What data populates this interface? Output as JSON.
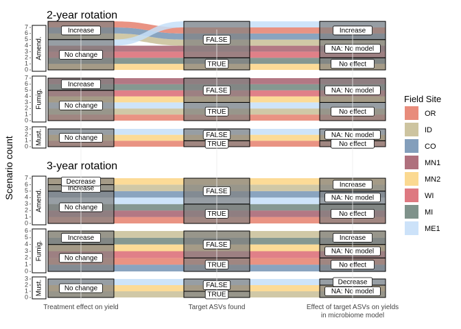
{
  "chart_data": {
    "type": "alluvial",
    "ylabel": "Scenario count",
    "axes": [
      "Treatment effect on yield",
      "Target ASVs found",
      "Effect of target ASVs on yields in microbiome model"
    ],
    "axis_label_lines": [
      [
        "Treatment effect on yield"
      ],
      [
        "Target ASVs found"
      ],
      [
        "Effect of target ASVs on yields",
        "in microbiome model"
      ]
    ],
    "legend": {
      "title": "Field Site",
      "position": "right",
      "sites": [
        "OR",
        "ID",
        "CO",
        "MN1",
        "MN2",
        "WI",
        "MI",
        "ME1"
      ],
      "colors": {
        "OR": "#E5806D",
        "ID": "#C8BE96",
        "CO": "#7594B4",
        "MN1": "#A6606F",
        "MN2": "#FBD585",
        "WI": "#DA6A73",
        "MI": "#71867E",
        "ME1": "#C6DFF8"
      }
    },
    "blocks": [
      {
        "title": "2-year rotation",
        "panels": [
          {
            "strip": "Amend.",
            "ymax": 7,
            "ticks": [
              0,
              1,
              2,
              3,
              4,
              5,
              6,
              7
            ],
            "strata": [
              [
                "No change",
                "Increase"
              ],
              [
                "TRUE",
                "FALSE"
              ],
              [
                "No effect",
                "NA: No model",
                "Increase"
              ]
            ],
            "flows": [
              {
                "site": "MN2",
                "path": [
                  "No change",
                  "TRUE",
                  "No effect"
                ]
              },
              {
                "site": "MI",
                "path": [
                  "No change",
                  "TRUE",
                  "No effect"
                ]
              },
              {
                "site": "WI",
                "path": [
                  "No change",
                  "FALSE",
                  "NA: No model"
                ]
              },
              {
                "site": "MN1",
                "path": [
                  "No change",
                  "FALSE",
                  "NA: No model"
                ]
              },
              {
                "site": "ID",
                "path": [
                  "Increase",
                  "FALSE",
                  "NA: No model"
                ]
              },
              {
                "site": "CO",
                "path": [
                  "Increase",
                  "FALSE",
                  "Increase"
                ]
              },
              {
                "site": "OR",
                "path": [
                  "Increase",
                  "FALSE",
                  "Increase"
                ]
              },
              {
                "site": "ME1",
                "path": [
                  "No change",
                  "FALSE",
                  "Increase"
                ]
              }
            ]
          },
          {
            "strip": "Fumig.",
            "ymax": 7,
            "ticks": [
              0,
              1,
              2,
              3,
              4,
              5,
              6,
              7
            ],
            "strata": [
              [
                "No change",
                "Increase"
              ],
              [
                "TRUE",
                "FALSE"
              ],
              [
                "No effect",
                "NA: No model"
              ]
            ],
            "flows": [
              {
                "site": "OR",
                "path": [
                  "No change",
                  "TRUE",
                  "No effect"
                ]
              },
              {
                "site": "ID",
                "path": [
                  "No change",
                  "TRUE",
                  "No effect"
                ]
              },
              {
                "site": "ME1",
                "path": [
                  "No change",
                  "TRUE",
                  "No effect"
                ]
              },
              {
                "site": "MN2",
                "path": [
                  "No change",
                  "FALSE",
                  "NA: No model"
                ]
              },
              {
                "site": "WI",
                "path": [
                  "No change",
                  "FALSE",
                  "NA: No model"
                ]
              },
              {
                "site": "MI",
                "path": [
                  "Increase",
                  "FALSE",
                  "NA: No model"
                ]
              },
              {
                "site": "MN1",
                "path": [
                  "Increase",
                  "FALSE",
                  "NA: No model"
                ]
              }
            ]
          },
          {
            "strip": "Must.",
            "ymax": 3,
            "ticks": [
              0,
              1,
              2,
              3
            ],
            "strata": [
              [
                "No change"
              ],
              [
                "TRUE",
                "FALSE"
              ],
              [
                "No effect",
                "NA: No model"
              ]
            ],
            "flows": [
              {
                "site": "OR",
                "path": [
                  "No change",
                  "TRUE",
                  "No effect"
                ]
              },
              {
                "site": "MN2",
                "path": [
                  "No change",
                  "FALSE",
                  "NA: No model"
                ]
              },
              {
                "site": "ME1",
                "path": [
                  "No change",
                  "FALSE",
                  "NA: No model"
                ]
              }
            ]
          }
        ]
      },
      {
        "title": "3-year rotation",
        "panels": [
          {
            "strip": "Amend.",
            "ymax": 7,
            "ticks": [
              0,
              1,
              2,
              3,
              4,
              5,
              6,
              7
            ],
            "strata": [
              [
                "No change",
                "Increase",
                "Decrease"
              ],
              [
                "TRUE",
                "FALSE"
              ],
              [
                "No effect",
                "NA: No model",
                "Increase"
              ]
            ],
            "flows": [
              {
                "site": "OR",
                "path": [
                  "No change",
                  "TRUE",
                  "No effect"
                ]
              },
              {
                "site": "MN1",
                "path": [
                  "No change",
                  "TRUE",
                  "No effect"
                ]
              },
              {
                "site": "MI",
                "path": [
                  "No change",
                  "TRUE",
                  "No effect"
                ]
              },
              {
                "site": "ME1",
                "path": [
                  "No change",
                  "FALSE",
                  "NA: No model"
                ]
              },
              {
                "site": "CO",
                "path": [
                  "No change",
                  "FALSE",
                  "NA: No model"
                ]
              },
              {
                "site": "ID",
                "path": [
                  "Increase",
                  "FALSE",
                  "Increase"
                ]
              },
              {
                "site": "MN2",
                "path": [
                  "Decrease",
                  "FALSE",
                  "Increase"
                ]
              }
            ]
          },
          {
            "strip": "Fumig.",
            "ymax": 6,
            "ticks": [
              0,
              1,
              2,
              3,
              4,
              5,
              6
            ],
            "strata": [
              [
                "No change",
                "Increase"
              ],
              [
                "TRUE",
                "FALSE"
              ],
              [
                "No effect",
                "NA: No model",
                "Increase"
              ]
            ],
            "flows": [
              {
                "site": "CO",
                "path": [
                  "No change",
                  "TRUE",
                  "No effect"
                ]
              },
              {
                "site": "OR",
                "path": [
                  "No change",
                  "TRUE",
                  "No effect"
                ]
              },
              {
                "site": "WI",
                "path": [
                  "No change",
                  "FALSE",
                  "NA: No model"
                ]
              },
              {
                "site": "MN2",
                "path": [
                  "No change",
                  "FALSE",
                  "NA: No model"
                ]
              },
              {
                "site": "MI",
                "path": [
                  "Increase",
                  "FALSE",
                  "Increase"
                ]
              },
              {
                "site": "ID",
                "path": [
                  "Increase",
                  "FALSE",
                  "Increase"
                ]
              }
            ]
          },
          {
            "strip": "Must.",
            "ymax": 3,
            "ticks": [
              0,
              1,
              2,
              3
            ],
            "strata": [
              [
                "No change"
              ],
              [
                "TRUE",
                "FALSE"
              ],
              [
                "NA: No model",
                "Decrease"
              ]
            ],
            "flows": [
              {
                "site": "ID",
                "path": [
                  "No change",
                  "TRUE",
                  "NA: No model"
                ]
              },
              {
                "site": "MN2",
                "path": [
                  "No change",
                  "FALSE",
                  "NA: No model"
                ]
              },
              {
                "site": "ME1",
                "path": [
                  "No change",
                  "FALSE",
                  "Decrease"
                ]
              }
            ]
          }
        ]
      }
    ]
  }
}
